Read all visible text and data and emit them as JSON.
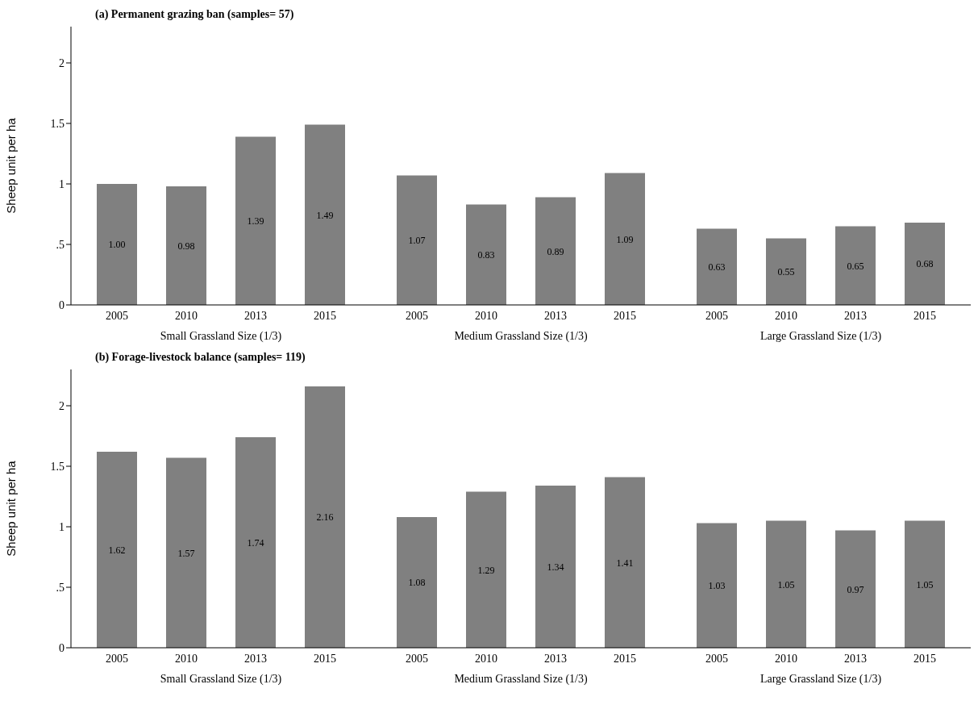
{
  "chart_data": [
    {
      "type": "bar",
      "title": "(a) Permanent grazing ban (samples= 57)",
      "ylabel": "Sheep unit per ha",
      "xlabel": "Small Grassland Size (1/3)",
      "categories": [
        "2005",
        "2010",
        "2013",
        "2015"
      ],
      "values": [
        1.0,
        0.98,
        1.39,
        1.49
      ],
      "value_labels": [
        "1.00",
        "0.98",
        "1.39",
        "1.49"
      ],
      "color": "#808080",
      "ylim": [
        0,
        2.3
      ],
      "yticks": [
        0,
        {
          "value": 0.5,
          "label": ".5"
        },
        1,
        1.5,
        2
      ],
      "grid": false
    },
    {
      "type": "bar",
      "xlabel": "Medium Grassland Size (1/3)",
      "categories": [
        "2005",
        "2010",
        "2013",
        "2015"
      ],
      "values": [
        1.07,
        0.83,
        0.89,
        1.09
      ],
      "value_labels": [
        "1.07",
        "0.83",
        "0.89",
        "1.09"
      ],
      "color": "#808080",
      "tick_labels": "x",
      "grid": false
    },
    {
      "type": "bar",
      "xlabel": "Large Grassland Size (1/3)",
      "categories": [
        "2005",
        "2010",
        "2013",
        "2015"
      ],
      "values": [
        0.63,
        0.55,
        0.65,
        0.68
      ],
      "value_labels": [
        "0.63",
        "0.55",
        "0.65",
        "0.68"
      ],
      "color": "#808080",
      "tick_labels": "x",
      "grid": false
    },
    {
      "type": "bar",
      "title": "(b) Forage-livestock balance (samples= 119)",
      "ylabel": "Sheep unit per ha",
      "xlabel": "Small Grassland Size (1/3)",
      "categories": [
        "2005",
        "2010",
        "2013",
        "2015"
      ],
      "values": [
        1.62,
        1.57,
        1.74,
        2.16
      ],
      "value_labels": [
        "1.62",
        "1.57",
        "1.74",
        "2.16"
      ],
      "color": "#808080",
      "ylim": [
        0,
        2.3
      ],
      "yticks": [
        0,
        {
          "value": 0.5,
          "label": ".5"
        },
        1,
        1.5,
        2
      ],
      "grid": false
    },
    {
      "type": "bar",
      "xlabel": "Medium Grassland Size (1/3)",
      "categories": [
        "2005",
        "2010",
        "2013",
        "2015"
      ],
      "values": [
        1.08,
        1.29,
        1.34,
        1.41
      ],
      "value_labels": [
        "1.08",
        "1.29",
        "1.34",
        "1.41"
      ],
      "color": "#808080",
      "tick_labels": "x",
      "grid": false
    },
    {
      "type": "bar",
      "xlabel": "Large Grassland Size (1/3)",
      "categories": [
        "2005",
        "2010",
        "2013",
        "2015"
      ],
      "values": [
        1.03,
        1.05,
        0.97,
        1.05
      ],
      "value_labels": [
        "1.03",
        "1.05",
        "0.97",
        "1.05"
      ],
      "color": "#808080",
      "tick_labels": "x",
      "grid": false
    }
  ]
}
